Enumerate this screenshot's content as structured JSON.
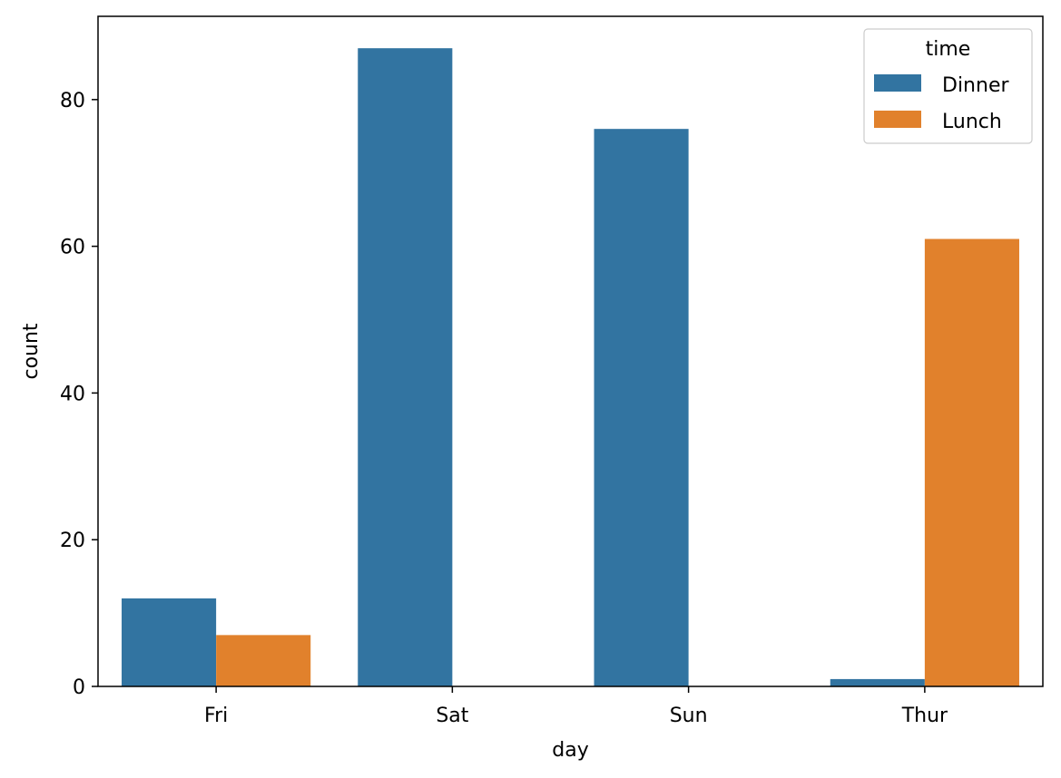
{
  "chart_data": {
    "type": "bar",
    "categories": [
      "Fri",
      "Sat",
      "Sun",
      "Thur"
    ],
    "series": [
      {
        "name": "Dinner",
        "values": [
          12,
          87,
          76,
          1
        ],
        "color": "#3274a1"
      },
      {
        "name": "Lunch",
        "values": [
          7,
          0,
          0,
          61
        ],
        "color": "#e1812c"
      }
    ],
    "xlabel": "day",
    "ylabel": "count",
    "ylim": [
      0,
      91.35
    ],
    "yticks": [
      0,
      20,
      40,
      60,
      80
    ],
    "grid": false,
    "legend": {
      "title": "time",
      "position": "top-right"
    }
  }
}
